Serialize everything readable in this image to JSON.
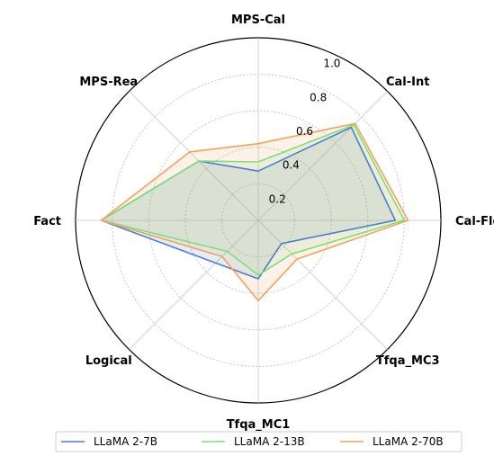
{
  "chart_data": {
    "type": "radar",
    "title": "",
    "axes": [
      "MPS-Cal",
      "Cal-Int",
      "Cal-Float",
      "Tfqa_MC3",
      "Tfqa_MC1",
      "Logical",
      "Fact",
      "MPS-Rea"
    ],
    "r_ticks": [
      0.2,
      0.4,
      0.6,
      0.8,
      1.0
    ],
    "r_tick_labels": [
      "0.2",
      "0.4",
      "0.6",
      "0.8",
      "1.0"
    ],
    "ylim": [
      0,
      1.0
    ],
    "grid": true,
    "legend_position": "bottom",
    "series": [
      {
        "name": "LLaMA 2-7B",
        "color": "#4a7fd4",
        "values": [
          0.27,
          0.72,
          0.75,
          0.18,
          0.32,
          0.33,
          0.86,
          0.46
        ]
      },
      {
        "name": "LLaMA 2-13B",
        "color": "#7be07b",
        "values": [
          0.32,
          0.74,
          0.8,
          0.26,
          0.3,
          0.24,
          0.86,
          0.46
        ]
      },
      {
        "name": "LLaMA 2-70B",
        "color": "#f5a25a",
        "values": [
          0.42,
          0.75,
          0.82,
          0.3,
          0.44,
          0.28,
          0.86,
          0.53
        ]
      }
    ]
  }
}
